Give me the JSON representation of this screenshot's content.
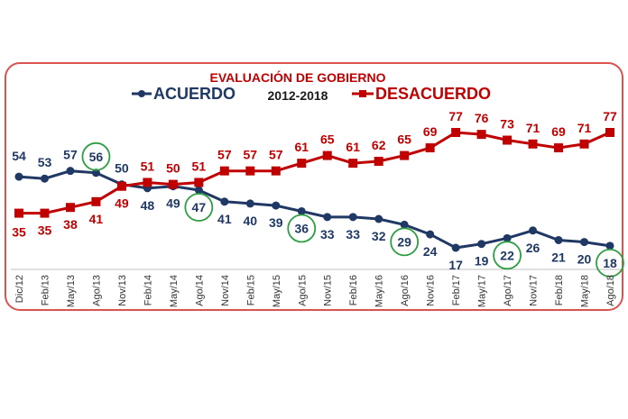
{
  "chart_data": {
    "type": "line",
    "title": "EVALUACIÓN DE GOBIERNO",
    "subtitle": "2012-2018",
    "categories": [
      "Dic/12",
      "Feb/13",
      "May/13",
      "Ago/13",
      "Nov/13",
      "Feb/14",
      "May/14",
      "Ago/14",
      "Nov/14",
      "Feb/15",
      "May/15",
      "Ago/15",
      "Nov/15",
      "Feb/16",
      "May/16",
      "Ago/16",
      "Nov/16",
      "Feb/17",
      "May/17",
      "Ago/17",
      "Nov/17",
      "Feb/18",
      "May/18",
      "Ago/18"
    ],
    "series": [
      {
        "name": "ACUERDO",
        "color": "#1f3864",
        "values": [
          54,
          53,
          57,
          56,
          50,
          48,
          49,
          47,
          41,
          40,
          39,
          36,
          33,
          33,
          32,
          29,
          24,
          17,
          19,
          22,
          26,
          21,
          20,
          18
        ]
      },
      {
        "name": "DESACUERDO",
        "color": "#c00000",
        "values": [
          35,
          35,
          38,
          41,
          49,
          51,
          50,
          51,
          57,
          57,
          57,
          61,
          65,
          61,
          62,
          65,
          69,
          77,
          76,
          73,
          71,
          69,
          71,
          77
        ]
      }
    ],
    "highlighted": [
      {
        "series": "ACUERDO",
        "category": "Ago/13"
      },
      {
        "series": "ACUERDO",
        "category": "Ago/14"
      },
      {
        "series": "ACUERDO",
        "category": "Ago/15"
      },
      {
        "series": "ACUERDO",
        "category": "Ago/16"
      },
      {
        "series": "ACUERDO",
        "category": "Ago/17"
      },
      {
        "series": "ACUERDO",
        "category": "Ago/18"
      }
    ],
    "legend_position": "top",
    "grid": false,
    "colors": {
      "frame": "#d9534f",
      "title": "#c00000",
      "highlight_circle": "#2e9e44"
    }
  }
}
